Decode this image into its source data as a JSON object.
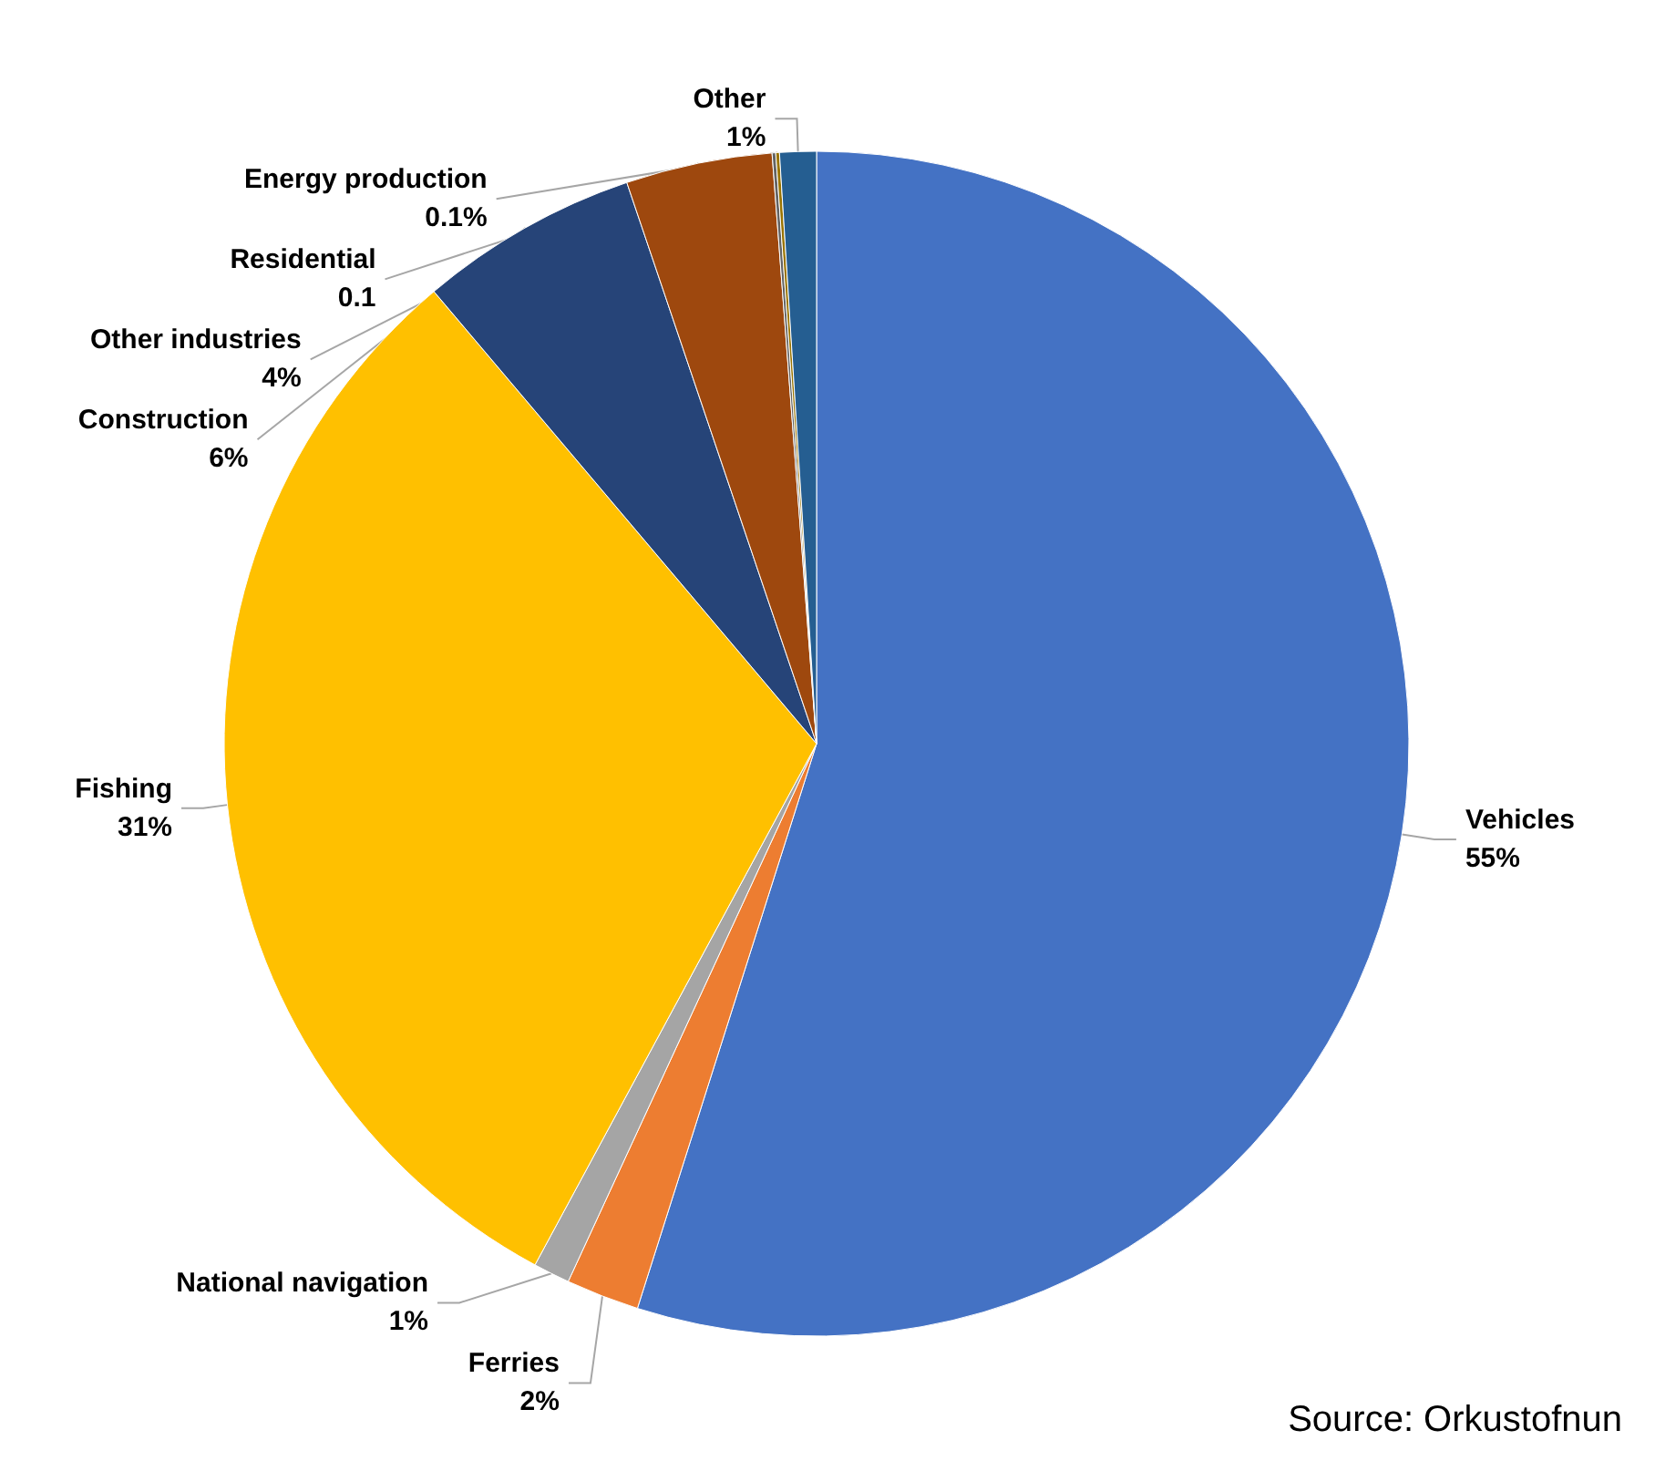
{
  "chart_data": {
    "type": "pie",
    "categories": [
      "Vehicles",
      "Ferries",
      "National navigation",
      "Fishing",
      "Construction",
      "Other industries",
      "Residential",
      "Energy production",
      "Other"
    ],
    "values": [
      55,
      2,
      1,
      31,
      6,
      4,
      0.1,
      0.1,
      1
    ],
    "value_labels": [
      "55%",
      "2%",
      "1%",
      "31%",
      "6%",
      "4%",
      "0.1",
      "0.1%",
      "1%"
    ],
    "colors": [
      "#4472c4",
      "#ed7d31",
      "#a5a5a5",
      "#ffc000",
      "#264478",
      "#9e480e",
      "#636363",
      "#997300",
      "#255e91"
    ],
    "legend": false,
    "annotations": [
      "Source: Orkustofnun"
    ]
  }
}
